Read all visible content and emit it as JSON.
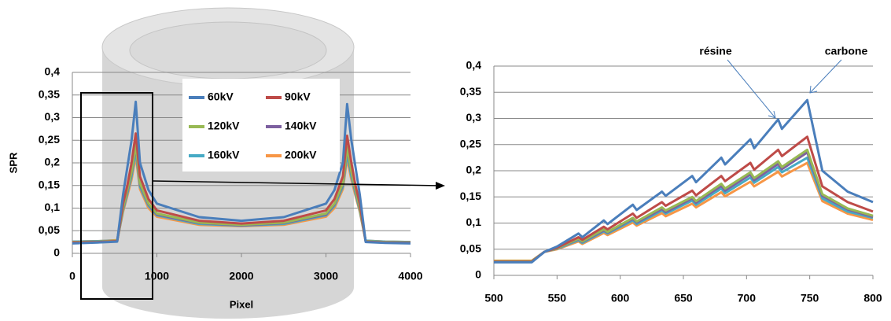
{
  "chart_data": [
    {
      "type": "line",
      "xlabel": "Pixel",
      "ylabel": "SPR",
      "x": [
        0,
        300,
        530,
        600,
        650,
        700,
        750,
        800,
        900,
        1000,
        1500,
        2000,
        2500,
        3000,
        3100,
        3200,
        3250,
        3300,
        3350,
        3400,
        3470,
        3700,
        4000
      ],
      "series": [
        {
          "name": "60kV",
          "color": "#4a7ebb",
          "values": [
            0.022,
            0.024,
            0.026,
            0.13,
            0.19,
            0.25,
            0.335,
            0.2,
            0.14,
            0.11,
            0.08,
            0.072,
            0.08,
            0.11,
            0.14,
            0.2,
            0.33,
            0.25,
            0.19,
            0.13,
            0.025,
            0.023,
            0.022
          ]
        },
        {
          "name": "90kV",
          "color": "#be4b48",
          "values": [
            0.024,
            0.025,
            0.027,
            0.11,
            0.15,
            0.2,
            0.265,
            0.17,
            0.12,
            0.095,
            0.072,
            0.066,
            0.072,
            0.095,
            0.12,
            0.17,
            0.26,
            0.2,
            0.15,
            0.11,
            0.026,
            0.024,
            0.023
          ]
        },
        {
          "name": "120kV",
          "color": "#98b954",
          "values": [
            0.025,
            0.026,
            0.028,
            0.1,
            0.14,
            0.18,
            0.24,
            0.155,
            0.11,
            0.088,
            0.068,
            0.063,
            0.068,
            0.088,
            0.11,
            0.155,
            0.235,
            0.18,
            0.14,
            0.1,
            0.027,
            0.025,
            0.024
          ]
        },
        {
          "name": "140kV",
          "color": "#7d60a0",
          "values": [
            0.025,
            0.026,
            0.028,
            0.098,
            0.137,
            0.177,
            0.235,
            0.152,
            0.108,
            0.086,
            0.067,
            0.062,
            0.067,
            0.086,
            0.108,
            0.152,
            0.23,
            0.177,
            0.137,
            0.098,
            0.027,
            0.025,
            0.024
          ]
        },
        {
          "name": "160kV",
          "color": "#46aac5",
          "values": [
            0.026,
            0.027,
            0.028,
            0.095,
            0.132,
            0.17,
            0.225,
            0.147,
            0.105,
            0.084,
            0.065,
            0.061,
            0.065,
            0.084,
            0.105,
            0.147,
            0.22,
            0.17,
            0.132,
            0.095,
            0.028,
            0.026,
            0.025
          ]
        },
        {
          "name": "200kV",
          "color": "#f79646",
          "values": [
            0.026,
            0.027,
            0.029,
            0.092,
            0.127,
            0.163,
            0.215,
            0.142,
            0.1,
            0.081,
            0.063,
            0.06,
            0.063,
            0.081,
            0.1,
            0.142,
            0.21,
            0.163,
            0.127,
            0.092,
            0.028,
            0.026,
            0.025
          ]
        }
      ],
      "xlim": [
        0,
        4000
      ],
      "xticks": [
        0,
        1000,
        2000,
        3000,
        4000
      ],
      "ylim": [
        0,
        0.4
      ],
      "yticks": [
        0,
        {
          "value": 0.05,
          "label": "0,05"
        },
        {
          "value": 0.1,
          "label": "0,1"
        },
        {
          "value": 0.15,
          "label": "0,15"
        },
        {
          "value": 0.2,
          "label": "0,2"
        },
        {
          "value": 0.25,
          "label": "0,25"
        },
        {
          "value": 0.3,
          "label": "0,3"
        },
        {
          "value": 0.35,
          "label": "0,35"
        },
        {
          "value": 0.4,
          "label": "0,4"
        }
      ],
      "grid": true,
      "legend": "top"
    },
    {
      "type": "line",
      "annotations": [
        "résine",
        "carbone"
      ],
      "x": [
        500,
        530,
        540,
        550,
        567,
        570,
        587,
        590,
        610,
        613,
        633,
        636,
        657,
        660,
        680,
        683,
        703,
        706,
        725,
        728,
        748,
        760,
        780,
        800
      ],
      "series": [
        {
          "name": "60kV",
          "color": "#4a7ebb",
          "values": [
            0.025,
            0.025,
            0.045,
            0.055,
            0.08,
            0.073,
            0.105,
            0.098,
            0.135,
            0.125,
            0.16,
            0.152,
            0.19,
            0.178,
            0.225,
            0.212,
            0.26,
            0.243,
            0.298,
            0.28,
            0.335,
            0.2,
            0.16,
            0.14
          ]
        },
        {
          "name": "90kV",
          "color": "#be4b48",
          "values": [
            0.026,
            0.026,
            0.045,
            0.053,
            0.073,
            0.068,
            0.093,
            0.088,
            0.118,
            0.11,
            0.14,
            0.133,
            0.162,
            0.153,
            0.19,
            0.18,
            0.215,
            0.202,
            0.24,
            0.228,
            0.265,
            0.17,
            0.14,
            0.122
          ]
        },
        {
          "name": "120kV",
          "color": "#98b954",
          "values": [
            0.027,
            0.027,
            0.045,
            0.052,
            0.07,
            0.065,
            0.088,
            0.083,
            0.11,
            0.103,
            0.13,
            0.124,
            0.15,
            0.142,
            0.175,
            0.166,
            0.197,
            0.186,
            0.218,
            0.207,
            0.24,
            0.155,
            0.128,
            0.114
          ]
        },
        {
          "name": "140kV",
          "color": "#7d60a0",
          "values": [
            0.027,
            0.027,
            0.045,
            0.052,
            0.069,
            0.064,
            0.086,
            0.082,
            0.108,
            0.101,
            0.127,
            0.121,
            0.147,
            0.139,
            0.171,
            0.162,
            0.193,
            0.182,
            0.213,
            0.203,
            0.235,
            0.152,
            0.126,
            0.112
          ]
        },
        {
          "name": "160kV",
          "color": "#46aac5",
          "values": [
            0.027,
            0.027,
            0.045,
            0.051,
            0.067,
            0.062,
            0.084,
            0.08,
            0.105,
            0.098,
            0.124,
            0.118,
            0.143,
            0.135,
            0.166,
            0.157,
            0.187,
            0.177,
            0.207,
            0.197,
            0.225,
            0.147,
            0.122,
            0.11
          ]
        },
        {
          "name": "200kV",
          "color": "#f79646",
          "values": [
            0.028,
            0.028,
            0.045,
            0.05,
            0.065,
            0.06,
            0.081,
            0.077,
            0.101,
            0.095,
            0.119,
            0.113,
            0.137,
            0.13,
            0.159,
            0.151,
            0.179,
            0.17,
            0.198,
            0.189,
            0.215,
            0.142,
            0.118,
            0.106
          ]
        }
      ],
      "xlim": [
        500,
        800
      ],
      "xticks": [
        500,
        550,
        600,
        650,
        700,
        750,
        800
      ],
      "ylim": [
        0,
        0.4
      ],
      "yticks": [
        0,
        {
          "value": 0.05,
          "label": "0,05"
        },
        {
          "value": 0.1,
          "label": "0,1"
        },
        {
          "value": 0.15,
          "label": "0,15"
        },
        {
          "value": 0.2,
          "label": "0,2"
        },
        {
          "value": 0.25,
          "label": "0,25"
        },
        {
          "value": 0.3,
          "label": "0,3"
        },
        {
          "value": 0.35,
          "label": "0,35"
        },
        {
          "value": 0.4,
          "label": "0,4"
        }
      ],
      "grid": true
    }
  ]
}
